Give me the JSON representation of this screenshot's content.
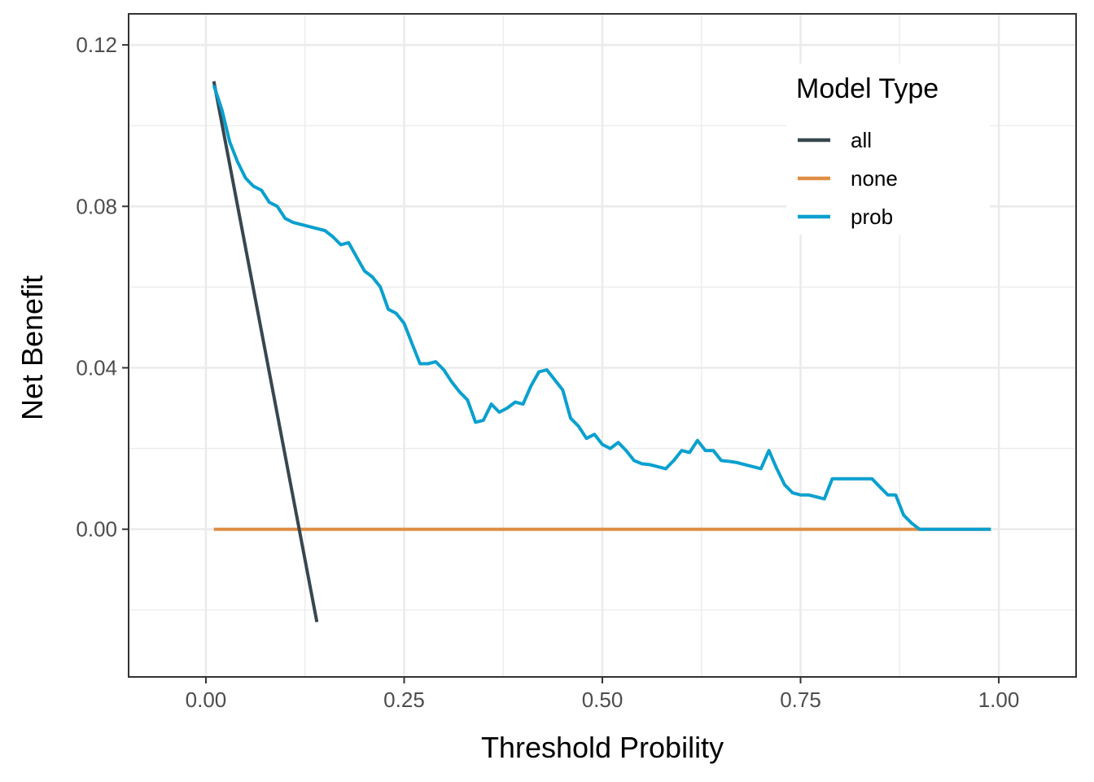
{
  "chart_data": {
    "type": "line",
    "title": "",
    "xlabel": "Threshold Probility",
    "ylabel": "Net Benefit",
    "xlim": [
      -0.0975,
      1.0975
    ],
    "ylim": [
      -0.0366,
      0.1277
    ],
    "x_ticks": [
      0,
      0.25,
      0.5,
      0.75,
      1.0
    ],
    "x_tick_labels": [
      "0.00",
      "0.25",
      "0.50",
      "0.75",
      "1.00"
    ],
    "y_ticks": [
      0,
      0.04,
      0.08,
      0.12
    ],
    "y_tick_labels": [
      "0.00",
      "0.04",
      "0.08",
      "0.12"
    ],
    "x_minor": [
      0.125,
      0.375,
      0.625,
      0.875
    ],
    "y_minor": [
      -0.02,
      0.02,
      0.06,
      0.1
    ],
    "grid": true,
    "legend": {
      "title": "Model Type",
      "position": "top-right"
    },
    "series": [
      {
        "name": "all",
        "color": "#37474f",
        "x": [
          0.01,
          0.14
        ],
        "y": [
          0.111,
          -0.023
        ]
      },
      {
        "name": "none",
        "color": "#e08e45",
        "x": [
          0.01,
          0.99
        ],
        "y": [
          0,
          0
        ]
      },
      {
        "name": "prob",
        "color": "#0aa0cf",
        "x": [
          0.01,
          0.02,
          0.03,
          0.04,
          0.05,
          0.06,
          0.07,
          0.08,
          0.09,
          0.1,
          0.11,
          0.12,
          0.13,
          0.14,
          0.15,
          0.16,
          0.17,
          0.18,
          0.19,
          0.2,
          0.21,
          0.22,
          0.23,
          0.24,
          0.25,
          0.26,
          0.27,
          0.28,
          0.29,
          0.3,
          0.31,
          0.32,
          0.33,
          0.34,
          0.35,
          0.36,
          0.37,
          0.38,
          0.39,
          0.4,
          0.41,
          0.42,
          0.43,
          0.44,
          0.45,
          0.46,
          0.47,
          0.48,
          0.49,
          0.5,
          0.51,
          0.52,
          0.53,
          0.54,
          0.55,
          0.56,
          0.57,
          0.58,
          0.59,
          0.6,
          0.61,
          0.62,
          0.63,
          0.64,
          0.65,
          0.66,
          0.67,
          0.68,
          0.69,
          0.7,
          0.71,
          0.72,
          0.73,
          0.74,
          0.75,
          0.76,
          0.77,
          0.78,
          0.79,
          0.8,
          0.81,
          0.82,
          0.83,
          0.84,
          0.85,
          0.86,
          0.87,
          0.88,
          0.89,
          0.9,
          0.91,
          0.92,
          0.93,
          0.94,
          0.95,
          0.96,
          0.97,
          0.98,
          0.99
        ],
        "y": [
          0.11,
          0.104,
          0.096,
          0.091,
          0.087,
          0.085,
          0.084,
          0.081,
          0.08,
          0.077,
          0.076,
          0.0755,
          0.075,
          0.0745,
          0.074,
          0.0725,
          0.0705,
          0.071,
          0.0675,
          0.064,
          0.0625,
          0.06,
          0.0545,
          0.0535,
          0.051,
          0.046,
          0.041,
          0.041,
          0.0415,
          0.0395,
          0.0365,
          0.034,
          0.032,
          0.0265,
          0.027,
          0.031,
          0.029,
          0.03,
          0.0315,
          0.031,
          0.0355,
          0.039,
          0.0395,
          0.037,
          0.0345,
          0.0275,
          0.0255,
          0.0225,
          0.0235,
          0.021,
          0.02,
          0.0215,
          0.0195,
          0.017,
          0.0162,
          0.016,
          0.0155,
          0.015,
          0.017,
          0.0195,
          0.019,
          0.022,
          0.0195,
          0.0195,
          0.017,
          0.0168,
          0.0165,
          0.016,
          0.0155,
          0.015,
          0.0195,
          0.015,
          0.011,
          0.009,
          0.0085,
          0.0085,
          0.008,
          0.0075,
          0.0125,
          0.0125,
          0.0125,
          0.0125,
          0.0125,
          0.0125,
          0.0105,
          0.0085,
          0.0085,
          0.0035,
          0.0015,
          0.0,
          0.0,
          0.0,
          0.0,
          0.0,
          0.0,
          0.0,
          0.0,
          0.0,
          0.0
        ]
      }
    ]
  }
}
